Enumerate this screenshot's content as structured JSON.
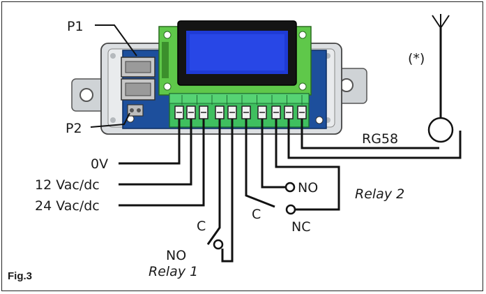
{
  "figure": {
    "label": "Fig.3"
  },
  "labels": {
    "p1": "P1",
    "p2": "P2",
    "ov": "0V",
    "v12": "12 Vac/dc",
    "v24": "24 Vac/dc",
    "c_relay1": "C",
    "no_relay1": "NO",
    "relay1": "Relay 1",
    "c_relay2": "C",
    "no_relay2": "NO",
    "nc_relay2": "NC",
    "relay2": "Relay 2",
    "rg58": "RG58",
    "antenna_note": "(*)"
  },
  "colors": {
    "enclosure": "#d4d7da",
    "pcb_blue": "#1d4f9c",
    "pcb_green": "#5fc84a",
    "lcd_screen": "#1f3bd6",
    "terminal_green": "#3fbf5f",
    "wire": "#111111"
  },
  "icons": [
    "antenna-icon",
    "coax-connector-icon",
    "lcd-display-icon",
    "rj45-connector-icon",
    "terminal-block-icon"
  ]
}
